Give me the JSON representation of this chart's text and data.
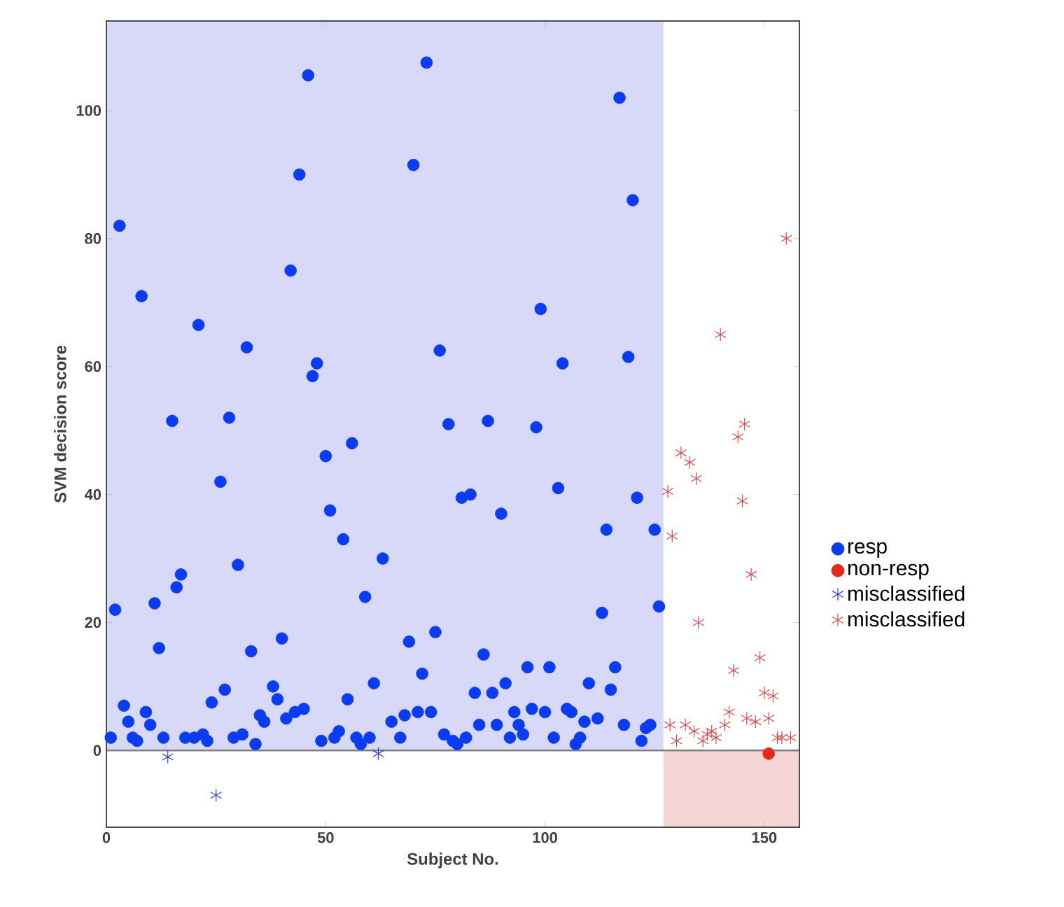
{
  "chart_data": {
    "type": "scatter",
    "xlabel": "Subject No.",
    "ylabel": "SVM decision score",
    "xlim": [
      0,
      158
    ],
    "ylim": [
      -12,
      114
    ],
    "xticks": [
      0,
      50,
      100,
      150
    ],
    "yticks": [
      0,
      20,
      40,
      60,
      80,
      100
    ],
    "legend": "right",
    "grid": false,
    "ref_lines": [
      {
        "axis": "y",
        "value": 0,
        "color": "#808080"
      }
    ],
    "bands": [
      {
        "axis": "x",
        "from": 0,
        "to": 127,
        "color": "#d8d9f8"
      },
      {
        "axis": "x",
        "from": 127,
        "to": 158,
        "color": "#f5d6d4"
      }
    ],
    "series": [
      {
        "name": "resp",
        "color": "#0a3cf5",
        "marker": "circle",
        "x": [
          1,
          2,
          3,
          4,
          5,
          6,
          7,
          8,
          9,
          10,
          11,
          12,
          13,
          15,
          16,
          17,
          18,
          20,
          21,
          22,
          23,
          24,
          26,
          27,
          28,
          29,
          30,
          31,
          32,
          33,
          34,
          35,
          36,
          38,
          39,
          40,
          41,
          42,
          43,
          44,
          45,
          46,
          47,
          48,
          49,
          50,
          51,
          52,
          53,
          54,
          55,
          56,
          57,
          58,
          59,
          60,
          61,
          63,
          65,
          67,
          68,
          69,
          70,
          71,
          72,
          73,
          74,
          75,
          76,
          77,
          78,
          79,
          80,
          81,
          82,
          83,
          84,
          85,
          86,
          87,
          88,
          89,
          90,
          91,
          92,
          93,
          94,
          95,
          96,
          97,
          98,
          99,
          100,
          101,
          102,
          103,
          104,
          105,
          106,
          107,
          108,
          109,
          110,
          112,
          113,
          114,
          115,
          116,
          117,
          118,
          119,
          120,
          121,
          122,
          123,
          124,
          125,
          126
        ],
        "values": [
          2,
          22,
          82,
          7,
          4.5,
          2,
          1.5,
          71,
          6,
          4,
          23,
          16,
          2,
          51.5,
          25.5,
          27.5,
          2,
          2,
          66.5,
          2.5,
          1.5,
          7.5,
          42,
          9.5,
          52,
          2,
          29,
          2.5,
          63,
          15.5,
          1,
          5.5,
          4.5,
          10,
          8,
          17.5,
          5,
          75,
          6,
          90,
          6.5,
          105.5,
          58.5,
          60.5,
          1.5,
          46,
          37.5,
          2,
          3,
          33,
          8,
          48,
          2,
          1,
          24,
          2,
          10.5,
          30,
          4.5,
          2,
          5.5,
          17,
          91.5,
          6,
          12,
          107.5,
          6,
          18.5,
          62.5,
          2.5,
          51,
          1.5,
          1,
          39.5,
          2,
          40,
          9,
          4,
          15,
          51.5,
          9,
          4,
          37,
          10.5,
          2,
          6,
          4,
          2.5,
          13,
          6.5,
          50.5,
          69,
          6,
          13,
          2,
          41,
          60.5,
          6.5,
          6,
          1,
          2,
          4.5,
          10.5,
          5,
          21.5,
          34.5,
          9.5,
          13,
          102,
          4,
          61.5,
          86,
          39.5,
          1.5,
          3.5,
          4,
          34.5,
          22.5
        ]
      },
      {
        "name": "non-resp",
        "color": "#e8261c",
        "marker": "circle",
        "x": [
          151
        ],
        "values": [
          -0.5
        ]
      },
      {
        "name": "misclassified",
        "color": "#2a3ae0",
        "marker": "cross",
        "x": [
          14,
          25,
          62
        ],
        "values": [
          -1,
          -7,
          -0.5
        ]
      },
      {
        "name": "misclassified",
        "color": "#e04848",
        "marker": "cross",
        "x": [
          128,
          128.5,
          129,
          130,
          131,
          132,
          133,
          134,
          134.5,
          135,
          136,
          137,
          138,
          139,
          140,
          141,
          142,
          143,
          144,
          145,
          145.5,
          146,
          147,
          148,
          149,
          150,
          151,
          152,
          153,
          154,
          155,
          156
        ],
        "values": [
          40.5,
          4,
          33.5,
          1.5,
          46.5,
          4,
          45,
          3,
          42.5,
          20,
          1.5,
          2.5,
          3,
          2,
          65,
          4,
          6,
          12.5,
          49,
          39,
          51,
          5,
          27.5,
          4.5,
          14.5,
          9,
          5,
          8.5,
          2,
          2,
          80,
          2
        ]
      }
    ]
  }
}
